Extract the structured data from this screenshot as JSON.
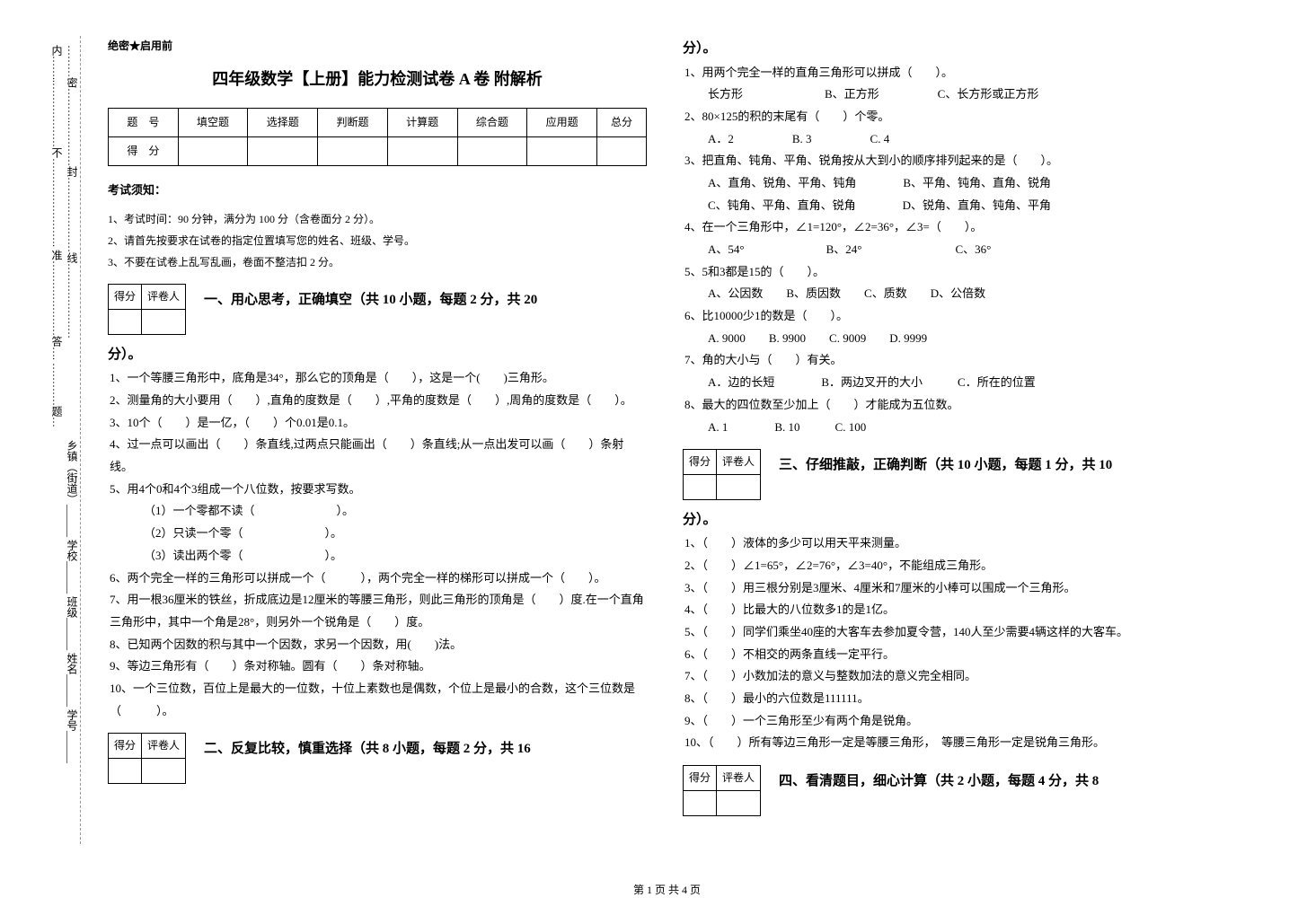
{
  "leftMargin": {
    "line1": "乡镇（街道）______ 学校______ 班级______ 姓名______ 学号______",
    "line2": "………密……….…………封…………………线…………………内……..………………不……………………. 准…………………答…. …………题…"
  },
  "secret": "绝密★启用前",
  "title": "四年级数学【上册】能力检测试卷 A 卷 附解析",
  "scoreTable": {
    "headers": [
      "题　号",
      "填空题",
      "选择题",
      "判断题",
      "计算题",
      "综合题",
      "应用题",
      "总分"
    ],
    "row2": "得　分"
  },
  "noticeTitle": "考试须知：",
  "notices": [
    "1、考试时间：90 分钟，满分为 100 分（含卷面分 2 分）。",
    "2、请首先按要求在试卷的指定位置填写您的姓名、班级、学号。",
    "3、不要在试卷上乱写乱画，卷面不整洁扣 2 分。"
  ],
  "scoreBox": {
    "c1": "得分",
    "c2": "评卷人"
  },
  "section1": {
    "title": "一、用心思考，正确填空（共 10 小题，每题 2 分，共 20",
    "titleCont": "分）。",
    "questions": [
      "1、一个等腰三角形中，底角是34°，那么它的顶角是（　　），这是一个(　　)三角形。",
      "2、测量角的大小要用（　　）,直角的度数是（　　）,平角的度数是（　　）,周角的度数是（　　）。",
      "3、10个（　　）是一亿，（　　）个0.01是0.1。",
      "4、过一点可以画出（　　）条直线,过两点只能画出（　　）条直线;从一点出发可以画（　　）条射线。",
      "5、用4个0和4个3组成一个八位数，按要求写数。"
    ],
    "sub5": [
      "（1）一个零都不读（　　　　　　　）。",
      "（2）只读一个零（　　　　　　　）。",
      "（3）读出两个零（　　　　　　　）。"
    ],
    "questions2": [
      "6、两个完全一样的三角形可以拼成一个（　　　），两个完全一样的梯形可以拼成一个（　　）。",
      "7、用一根36厘米的铁丝，折成底边是12厘米的等腰三角形，则此三角形的顶角是（　　）度.在一个直角三角形中，其中一个角是28°，则另外一个锐角是（　　）度。",
      "8、已知两个因数的积与其中一个因数，求另一个因数，用(　　)法。",
      "9、等边三角形有（　　）条对称轴。圆有（　　）条对称轴。",
      "10、一个三位数，百位上是最大的一位数，十位上素数也是偶数，个位上是最小的合数，这个三位数是（　　　）。"
    ]
  },
  "section2": {
    "title": "二、反复比较，慎重选择（共 8 小题，每题 2 分，共 16",
    "titleCont": "分）。",
    "questions": [
      "1、用两个完全一样的直角三角形可以拼成（　　）。",
      "　　长方形　　　　　　　B、正方形　　　　　C、长方形或正方形",
      "2、80×125的积的末尾有（　　）个零。",
      "　　A．2　　　　　B. 3　　　　　C. 4",
      "3、把直角、钝角、平角、锐角按从大到小的顺序排列起来的是（　　）。",
      "　　A、直角、锐角、平角、钝角　　　　B、平角、钝角、直角、锐角",
      "　　C、钝角、平角、直角、锐角　　　　D、锐角、直角、钝角、平角",
      "4、在一个三角形中，∠1=120°，∠2=36°，∠3=（　　）。",
      "　　A、54°　　　　　　　B、24°　　　　　　　　C、36°",
      "5、5和3都是15的（　　）。",
      "　　A、公因数　　B、质因数　　C、质数　　D、公倍数",
      "6、比10000少1的数是（　　）。",
      "　　A. 9000　　B. 9900　　C. 9009　　D. 9999",
      "7、角的大小与（　　）有关。",
      "　　A．边的长短　　　　B．两边叉开的大小　　　C．所在的位置",
      "8、最大的四位数至少加上（　　）才能成为五位数。",
      "　　A. 1　　　　B. 10　　　C. 100"
    ]
  },
  "section3": {
    "title": "三、仔细推敲，正确判断（共 10 小题，每题 1 分，共 10",
    "titleCont": "分）。",
    "questions": [
      "1、（　　）液体的多少可以用天平来测量。",
      "2、（　　）∠1=65°，∠2=76°，∠3=40°，不能组成三角形。",
      "3、（　　）用三根分别是3厘米、4厘米和7厘米的小棒可以围成一个三角形。",
      "4、（　　）比最大的八位数多1的是1亿。",
      "5、（　　）同学们乘坐40座的大客车去参加夏令营，140人至少需要4辆这样的大客车。",
      "6、（　　）不相交的两条直线一定平行。",
      "7、（　　）小数加法的意义与整数加法的意义完全相同。",
      "8、（　　）最小的六位数是111111。",
      "9、（　　）一个三角形至少有两个角是锐角。",
      "10、（　　）所有等边三角形一定是等腰三角形，　等腰三角形一定是锐角三角形。"
    ]
  },
  "section4": {
    "title": "四、看清题目，细心计算（共 2 小题，每题 4 分，共 8"
  },
  "footer": "第 1 页 共 4 页"
}
